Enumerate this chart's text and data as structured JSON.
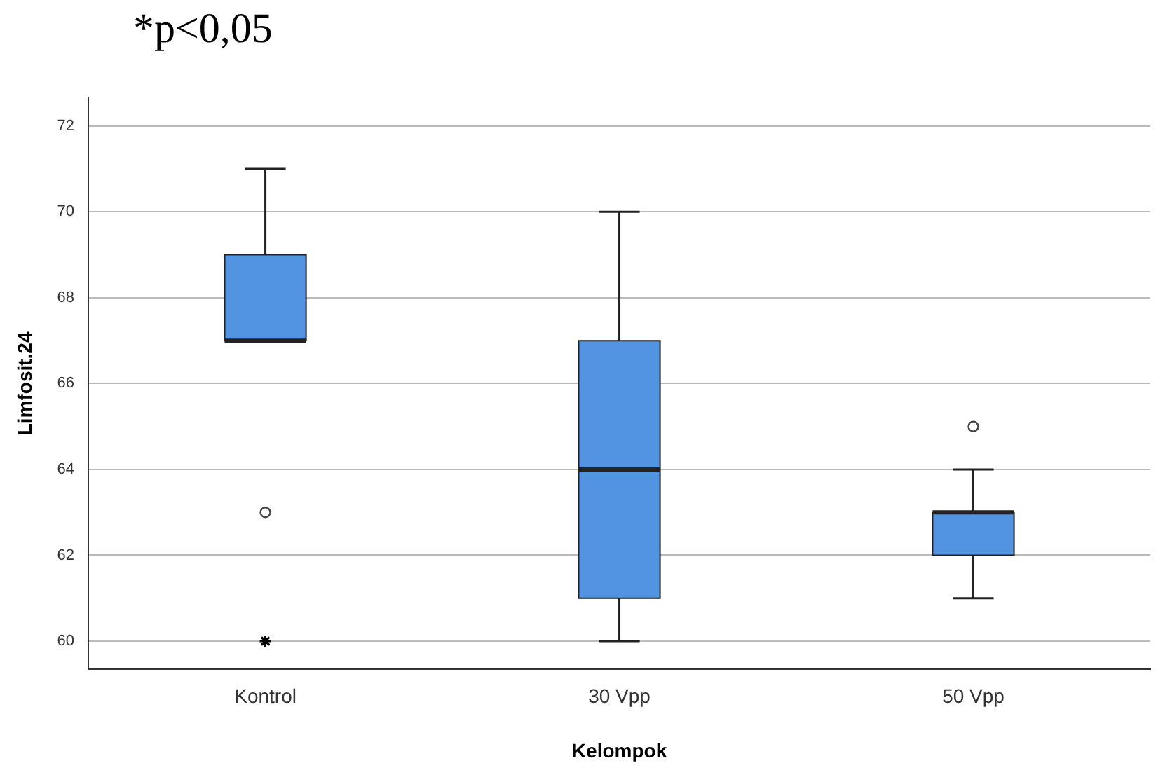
{
  "chart_data": {
    "type": "box",
    "title": "*p<0,05",
    "xlabel": "Kelompok",
    "ylabel": "Limfosit.24",
    "categories": [
      "Kontrol",
      "30 Vpp",
      "50 Vpp"
    ],
    "series": [
      {
        "color": "#5294e2",
        "boxes": [
          {
            "low": 67,
            "q1": 67,
            "median": 67,
            "q3": 69,
            "high": 71,
            "outliers": [
              63
            ]
          },
          {
            "low": 60,
            "q1": 61,
            "median": 64,
            "q3": 67,
            "high": 70
          },
          {
            "low": 61,
            "q1": 62,
            "median": 63,
            "q3": 63,
            "high": 64,
            "outliers": [
              65
            ]
          }
        ]
      },
      {
        "type": "scatter",
        "color": "#000000",
        "marker": "cross",
        "x": [
          "Kontrol"
        ],
        "values": [
          60
        ]
      }
    ],
    "ylim": [
      59.35,
      72.65
    ],
    "yticks": [
      60,
      62,
      64,
      66,
      68,
      70,
      72
    ],
    "grid": "y"
  }
}
